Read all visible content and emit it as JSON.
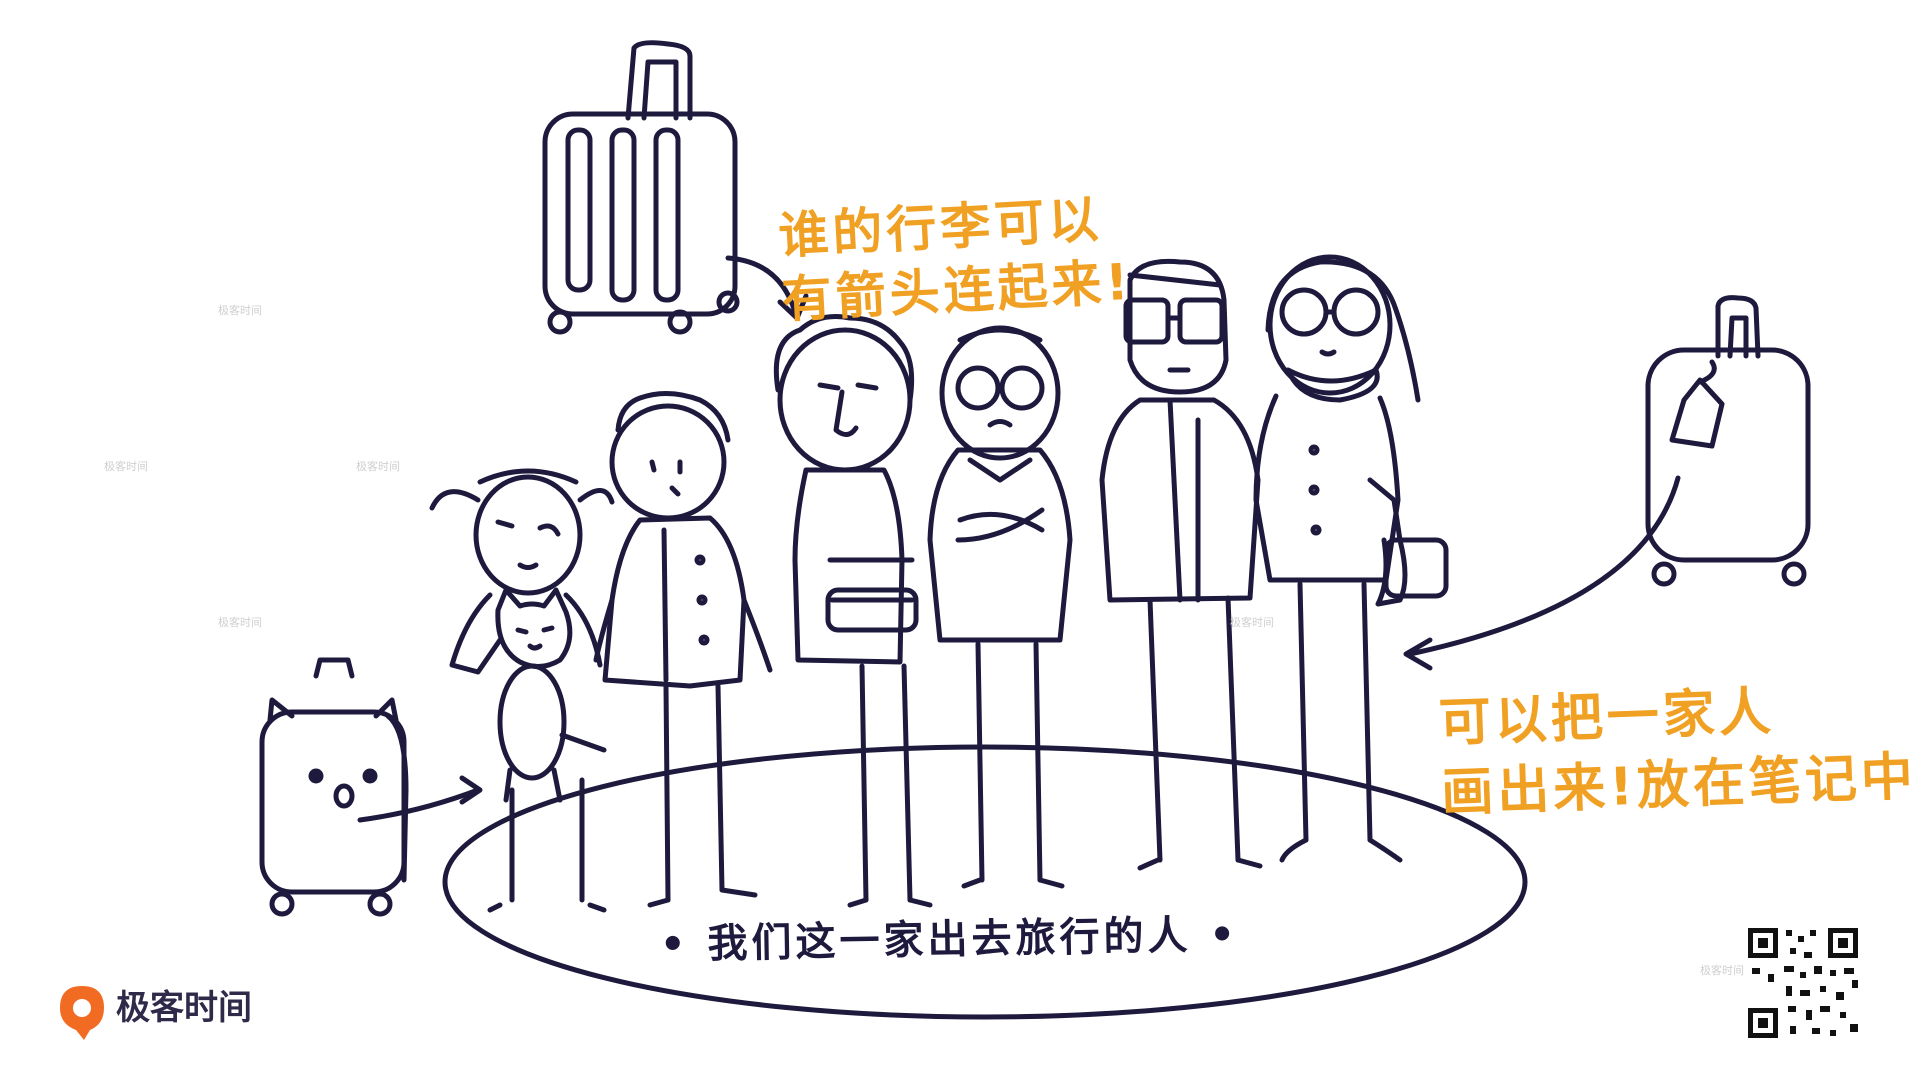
{
  "annotations": {
    "luggage_line1": "谁的行李可以",
    "luggage_line2": "有箭头连起来!",
    "family_line1": "可以把一家人",
    "family_line2": "画出来!放在笔记中.",
    "caption": "• 我们这一家出去旅行的人 •"
  },
  "brand": {
    "name": "极客时间",
    "watermark": "极客时间"
  },
  "colors": {
    "ink": "#1E1A3D",
    "accent": "#F0A022",
    "logo_orange": "#F26B22"
  },
  "icons": [
    "suitcase-icon",
    "dog-suitcase-icon",
    "tagged-suitcase-icon",
    "qr-code-icon",
    "geektime-logo-icon"
  ]
}
